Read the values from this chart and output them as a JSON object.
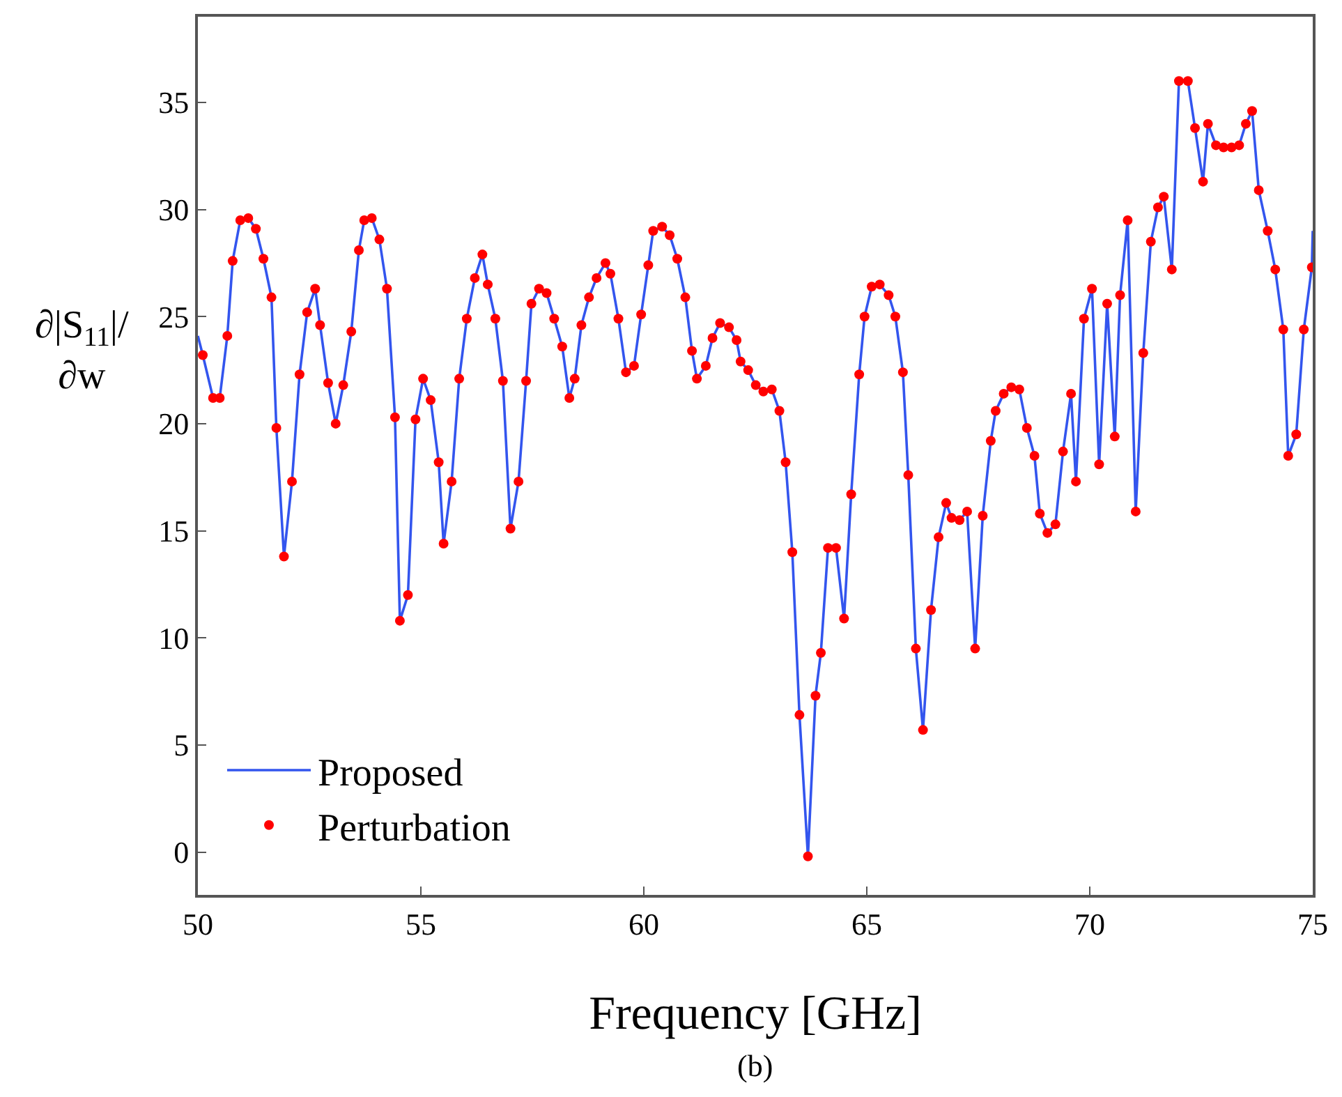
{
  "chart_data": {
    "type": "line",
    "xlabel": "Frequency [GHz]",
    "ylabel": "∂|S$_{11}$|/∂w",
    "xlim": [
      50,
      75
    ],
    "ylim": [
      -2,
      39
    ],
    "xticks": [
      50,
      55,
      60,
      65,
      70,
      75
    ],
    "yticks": [
      0,
      5,
      10,
      15,
      20,
      25,
      30,
      35
    ],
    "legend": "bottom left",
    "annotations": [
      "(b)"
    ],
    "series": [
      {
        "name": "Proposed",
        "color": "#3355ee",
        "marker": "none",
        "line_style": "solid",
        "x": [
          50.0,
          50.11,
          50.34,
          50.49,
          50.66,
          50.78,
          50.95,
          51.13,
          51.3,
          51.47,
          51.65,
          51.76,
          51.93,
          52.11,
          52.28,
          52.45,
          52.63,
          52.74,
          52.92,
          53.09,
          53.26,
          53.44,
          53.61,
          53.73,
          53.9,
          54.07,
          54.24,
          54.42,
          54.53,
          54.71,
          54.88,
          55.05,
          55.22,
          55.4,
          55.51,
          55.69,
          55.86,
          56.03,
          56.21,
          56.38,
          56.5,
          56.67,
          56.84,
          57.01,
          57.19,
          57.36,
          57.48,
          57.65,
          57.82,
          57.99,
          58.17,
          58.33,
          58.45,
          58.6,
          58.77,
          58.94,
          59.14,
          59.25,
          59.43,
          59.6,
          59.78,
          59.94,
          60.1,
          60.21,
          60.41,
          60.58,
          60.75,
          60.93,
          61.08,
          61.19,
          61.39,
          61.54,
          61.71,
          61.91,
          62.08,
          62.17,
          62.34,
          62.51,
          62.68,
          62.87,
          63.04,
          63.18,
          63.33,
          63.49,
          63.68,
          63.85,
          63.97,
          64.13,
          64.31,
          64.49,
          64.65,
          64.83,
          64.95,
          65.11,
          65.29,
          65.49,
          65.64,
          65.81,
          65.93,
          66.1,
          66.26,
          66.44,
          66.61,
          66.78,
          66.9,
          67.08,
          67.25,
          67.43,
          67.6,
          67.78,
          67.89,
          68.07,
          68.24,
          68.42,
          68.59,
          68.76,
          68.88,
          69.05,
          69.23,
          69.4,
          69.58,
          69.69,
          69.87,
          70.05,
          70.21,
          70.39,
          70.56,
          70.68,
          70.85,
          71.03,
          71.2,
          71.37,
          71.53,
          71.66,
          71.84,
          72.0,
          72.2,
          72.36,
          72.54,
          72.65,
          72.83,
          73.0,
          73.18,
          73.35,
          73.5,
          73.64,
          73.79,
          73.99,
          74.16,
          74.34,
          74.45,
          74.63,
          74.8,
          74.98,
          75.0
        ],
        "values": [
          24.1,
          23.2,
          21.2,
          21.2,
          24.1,
          27.6,
          29.5,
          29.6,
          29.1,
          27.7,
          25.9,
          19.8,
          13.8,
          17.3,
          22.3,
          25.2,
          26.3,
          24.6,
          21.9,
          20.0,
          21.8,
          24.3,
          28.1,
          29.5,
          29.6,
          28.6,
          26.3,
          20.3,
          10.8,
          12.0,
          20.2,
          22.1,
          21.1,
          18.2,
          14.4,
          17.3,
          22.1,
          24.9,
          26.8,
          27.9,
          26.5,
          24.9,
          22.0,
          15.1,
          17.3,
          22.0,
          25.6,
          26.3,
          26.1,
          24.9,
          23.6,
          21.2,
          22.1,
          24.6,
          25.9,
          26.8,
          27.5,
          27.0,
          24.9,
          22.4,
          22.7,
          25.1,
          27.4,
          29.0,
          29.2,
          28.8,
          27.7,
          25.9,
          23.4,
          22.1,
          22.7,
          24.0,
          24.7,
          24.5,
          23.9,
          22.9,
          22.5,
          21.8,
          21.5,
          21.6,
          20.6,
          18.2,
          14.0,
          6.4,
          -0.2,
          7.3,
          9.3,
          14.2,
          14.2,
          10.9,
          16.7,
          22.3,
          25.0,
          26.4,
          26.5,
          26.0,
          25.0,
          22.4,
          17.6,
          9.5,
          5.7,
          11.3,
          14.7,
          16.3,
          15.6,
          15.5,
          15.9,
          9.5,
          15.7,
          19.2,
          20.6,
          21.4,
          21.7,
          21.6,
          19.8,
          18.5,
          15.8,
          14.9,
          15.3,
          18.7,
          21.4,
          17.3,
          24.9,
          26.3,
          18.1,
          25.6,
          19.4,
          26.0,
          29.5,
          15.9,
          23.3,
          28.5,
          30.1,
          30.6,
          27.2,
          36.0,
          36.0,
          33.8,
          31.3,
          34.0,
          33.0,
          32.9,
          32.9,
          33.0,
          34.0,
          34.6,
          30.9,
          29.0,
          27.2,
          24.4,
          18.5,
          19.5,
          24.4,
          27.3,
          29.0
        ]
      },
      {
        "name": "Perturbation",
        "type": "scatter",
        "color": "#ff0000",
        "marker": "circle",
        "x": [
          50.11,
          50.34,
          50.49,
          50.66,
          50.78,
          50.95,
          51.13,
          51.3,
          51.47,
          51.65,
          51.76,
          51.93,
          52.11,
          52.28,
          52.45,
          52.63,
          52.74,
          52.92,
          53.09,
          53.26,
          53.44,
          53.61,
          53.73,
          53.9,
          54.07,
          54.24,
          54.42,
          54.53,
          54.71,
          54.88,
          55.05,
          55.22,
          55.4,
          55.51,
          55.69,
          55.86,
          56.03,
          56.21,
          56.38,
          56.5,
          56.67,
          56.84,
          57.01,
          57.19,
          57.36,
          57.48,
          57.65,
          57.82,
          57.99,
          58.17,
          58.33,
          58.45,
          58.6,
          58.77,
          58.94,
          59.14,
          59.25,
          59.43,
          59.6,
          59.78,
          59.94,
          60.1,
          60.21,
          60.41,
          60.58,
          60.75,
          60.93,
          61.08,
          61.19,
          61.39,
          61.54,
          61.71,
          61.91,
          62.08,
          62.17,
          62.34,
          62.51,
          62.68,
          62.87,
          63.04,
          63.18,
          63.33,
          63.49,
          63.68,
          63.85,
          63.97,
          64.13,
          64.31,
          64.49,
          64.65,
          64.83,
          64.95,
          65.11,
          65.29,
          65.49,
          65.64,
          65.81,
          65.93,
          66.1,
          66.26,
          66.44,
          66.61,
          66.78,
          66.9,
          67.08,
          67.25,
          67.43,
          67.6,
          67.78,
          67.89,
          68.07,
          68.24,
          68.42,
          68.59,
          68.76,
          68.88,
          69.05,
          69.23,
          69.4,
          69.58,
          69.69,
          69.87,
          70.05,
          70.21,
          70.39,
          70.56,
          70.68,
          70.85,
          71.03,
          71.2,
          71.37,
          71.53,
          71.66,
          71.84,
          72.0,
          72.2,
          72.36,
          72.54,
          72.65,
          72.83,
          73.0,
          73.18,
          73.35,
          73.5,
          73.64,
          73.79,
          73.99,
          74.16,
          74.34,
          74.45,
          74.63,
          74.8,
          74.98
        ],
        "values": [
          23.2,
          21.2,
          21.2,
          24.1,
          27.6,
          29.5,
          29.6,
          29.1,
          27.7,
          25.9,
          19.8,
          13.8,
          17.3,
          22.3,
          25.2,
          26.3,
          24.6,
          21.9,
          20.0,
          21.8,
          24.3,
          28.1,
          29.5,
          29.6,
          28.6,
          26.3,
          20.3,
          10.8,
          12.0,
          20.2,
          22.1,
          21.1,
          18.2,
          14.4,
          17.3,
          22.1,
          24.9,
          26.8,
          27.9,
          26.5,
          24.9,
          22.0,
          15.1,
          17.3,
          22.0,
          25.6,
          26.3,
          26.1,
          24.9,
          23.6,
          21.2,
          22.1,
          24.6,
          25.9,
          26.8,
          27.5,
          27.0,
          24.9,
          22.4,
          22.7,
          25.1,
          27.4,
          29.0,
          29.2,
          28.8,
          27.7,
          25.9,
          23.4,
          22.1,
          22.7,
          24.0,
          24.7,
          24.5,
          23.9,
          22.9,
          22.5,
          21.8,
          21.5,
          21.6,
          20.6,
          18.2,
          14.0,
          6.4,
          -0.2,
          7.3,
          9.3,
          14.2,
          14.2,
          10.9,
          16.7,
          22.3,
          25.0,
          26.4,
          26.5,
          26.0,
          25.0,
          22.4,
          17.6,
          9.5,
          5.7,
          11.3,
          14.7,
          16.3,
          15.6,
          15.5,
          15.9,
          9.5,
          15.7,
          19.2,
          20.6,
          21.4,
          21.7,
          21.6,
          19.8,
          18.5,
          15.8,
          14.9,
          15.3,
          18.7,
          21.4,
          17.3,
          24.9,
          26.3,
          18.1,
          25.6,
          19.4,
          26.0,
          29.5,
          15.9,
          23.3,
          28.5,
          30.1,
          30.6,
          27.2,
          36.0,
          36.0,
          33.8,
          31.3,
          34.0,
          33.0,
          32.9,
          32.9,
          33.0,
          34.0,
          34.6,
          30.9,
          29.0,
          27.2,
          24.4,
          18.5,
          19.5,
          24.4,
          27.3
        ]
      }
    ]
  }
}
